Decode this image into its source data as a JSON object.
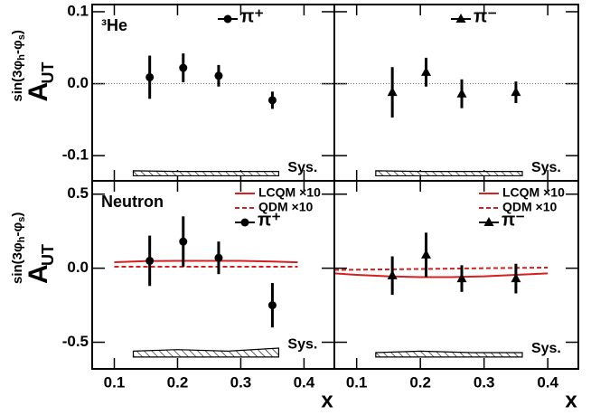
{
  "chart_data": [
    {
      "type": "scatter",
      "label": "³He",
      "zero_line": true,
      "ylabel": {
        "main": "A",
        "sub": "UT",
        "sup": [
          "sin(3φ",
          "h",
          "-φ",
          "s",
          ")"
        ]
      },
      "xlim": [
        0.065,
        0.448
      ],
      "xticks": [
        0.1,
        0.2,
        0.3,
        0.4
      ],
      "ylim": [
        -0.135,
        0.11
      ],
      "yticks": [
        0.1,
        {
          "value": 0,
          "label": "0.0"
        },
        -0.1
      ],
      "series": [
        {
          "name": "π⁺",
          "marker": "circle",
          "color": "#000000",
          "x": [
            0.156,
            0.209,
            0.265,
            0.35
          ],
          "values": [
            0.009,
            0.022,
            0.011,
            -0.023
          ],
          "errors": [
            0.03,
            0.02,
            0.015,
            0.012
          ]
        }
      ],
      "sys": {
        "label": "Sys.",
        "x": [
          0.13,
          0.2,
          0.28,
          0.36
        ],
        "lower": [
          -0.128,
          -0.128,
          -0.128,
          -0.128
        ],
        "upper": [
          -0.121,
          -0.122,
          -0.122,
          -0.122
        ]
      }
    },
    {
      "type": "scatter",
      "zero_line": true,
      "xlim": [
        0.065,
        0.448
      ],
      "xticks": [
        0.1,
        0.2,
        0.3,
        0.4
      ],
      "ylim": [
        -0.135,
        0.11
      ],
      "yticks": [
        0.1,
        0,
        -0.1
      ],
      "series": [
        {
          "name": "π⁻",
          "marker": "triangle",
          "color": "#000000",
          "x": [
            0.156,
            0.209,
            0.265,
            0.35
          ],
          "values": [
            -0.012,
            0.016,
            -0.014,
            -0.012
          ],
          "errors": [
            0.035,
            0.02,
            0.02,
            0.015
          ]
        }
      ],
      "sys": {
        "label": "Sys.",
        "x": [
          0.13,
          0.2,
          0.28,
          0.36
        ],
        "lower": [
          -0.128,
          -0.128,
          -0.128,
          -0.128
        ],
        "upper": [
          -0.121,
          -0.122,
          -0.122,
          -0.122
        ]
      }
    },
    {
      "type": "scatter",
      "label": "Neutron",
      "xlabel": "x",
      "ylabel": {
        "main": "A",
        "sub": "UT",
        "sup": [
          "sin(3φ",
          "h",
          "-φ",
          "s",
          ")"
        ]
      },
      "xlim": [
        0.065,
        0.448
      ],
      "xticks": [
        0.1,
        0.2,
        0.3,
        0.4
      ],
      "ylim": [
        -0.68,
        0.59
      ],
      "yticks": [
        0.5,
        {
          "value": 0,
          "label": "0.0"
        },
        -0.5
      ],
      "curves": [
        {
          "name": "LCQM ×10",
          "color": "#d62020",
          "dash": false,
          "x": [
            0.1,
            0.15,
            0.2,
            0.25,
            0.3,
            0.35,
            0.39
          ],
          "values": [
            0.04,
            0.048,
            0.05,
            0.05,
            0.05,
            0.045,
            0.04
          ]
        },
        {
          "name": "QDM ×10",
          "color": "#d62020",
          "dash": true,
          "x": [
            0.1,
            0.15,
            0.2,
            0.25,
            0.3,
            0.35,
            0.39
          ],
          "values": [
            0.01,
            0.01,
            0.01,
            0.01,
            0.01,
            0.01,
            0.01
          ]
        }
      ],
      "series": [
        {
          "name": "π⁺",
          "marker": "circle",
          "color": "#000000",
          "x": [
            0.156,
            0.209,
            0.265,
            0.35
          ],
          "values": [
            0.05,
            0.18,
            0.07,
            -0.25
          ],
          "errors": [
            0.17,
            0.17,
            0.11,
            0.15
          ]
        }
      ],
      "sys": {
        "label": "Sys.",
        "x": [
          0.13,
          0.2,
          0.28,
          0.36
        ],
        "lower": [
          -0.6,
          -0.6,
          -0.6,
          -0.6
        ],
        "upper": [
          -0.56,
          -0.55,
          -0.56,
          -0.54
        ]
      }
    },
    {
      "type": "scatter",
      "xlabel": "x",
      "xlim": [
        0.065,
        0.448
      ],
      "xticks": [
        0.1,
        0.2,
        0.3,
        0.4
      ],
      "ylim": [
        -0.68,
        0.59
      ],
      "yticks": [
        0.5,
        0,
        -0.5
      ],
      "curves": [
        {
          "name": "LCQM ×10",
          "color": "#d62020",
          "dash": false,
          "x": [
            0.065,
            0.1,
            0.15,
            0.2,
            0.25,
            0.3,
            0.35,
            0.4
          ],
          "values": [
            -0.035,
            -0.045,
            -0.055,
            -0.06,
            -0.06,
            -0.055,
            -0.045,
            -0.035
          ]
        },
        {
          "name": "QDM ×10",
          "color": "#d62020",
          "dash": true,
          "x": [
            0.065,
            0.1,
            0.15,
            0.2,
            0.25,
            0.3,
            0.35,
            0.4
          ],
          "values": [
            -0.012,
            -0.01,
            -0.008,
            -0.005,
            -0.003,
            0,
            0.002,
            0.004
          ]
        }
      ],
      "series": [
        {
          "name": "π⁻",
          "marker": "triangle",
          "color": "#000000",
          "x": [
            0.156,
            0.209,
            0.265,
            0.35
          ],
          "values": [
            -0.05,
            0.09,
            -0.07,
            -0.07
          ],
          "errors": [
            0.13,
            0.15,
            0.09,
            0.1
          ]
        }
      ],
      "sys": {
        "label": "Sys.",
        "x": [
          0.13,
          0.2,
          0.28,
          0.36
        ],
        "lower": [
          -0.6,
          -0.6,
          -0.6,
          -0.6
        ],
        "upper": [
          -0.57,
          -0.56,
          -0.57,
          -0.57
        ]
      }
    }
  ]
}
